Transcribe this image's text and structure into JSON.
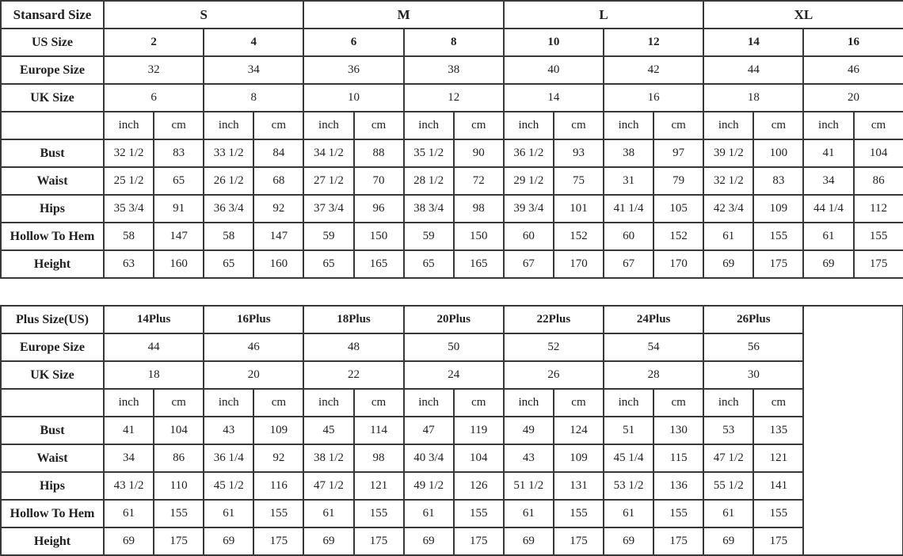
{
  "page": {
    "background_color": "#ffffff",
    "border_color": "#383838",
    "description": "Dress size chart with standard sizes and plus sizes"
  },
  "standard_table": {
    "name": "standard-size-chart",
    "label_column_header": "Stansard Size",
    "rows": [
      {
        "label": "Stansard Size",
        "style": "group",
        "cells": [
          {
            "t": "S",
            "s": 4
          },
          {
            "t": "M",
            "s": 4
          },
          {
            "t": "L",
            "s": 4
          },
          {
            "t": "XL",
            "s": 4
          }
        ]
      },
      {
        "label": "US Size",
        "style": "bold",
        "cells": [
          {
            "t": "2",
            "s": 2
          },
          {
            "t": "4",
            "s": 2
          },
          {
            "t": "6",
            "s": 2
          },
          {
            "t": "8",
            "s": 2
          },
          {
            "t": "10",
            "s": 2
          },
          {
            "t": "12",
            "s": 2
          },
          {
            "t": "14",
            "s": 2
          },
          {
            "t": "16",
            "s": 2
          }
        ]
      },
      {
        "label": "Europe Size",
        "cells": [
          {
            "t": "32",
            "s": 2
          },
          {
            "t": "34",
            "s": 2
          },
          {
            "t": "36",
            "s": 2
          },
          {
            "t": "38",
            "s": 2
          },
          {
            "t": "40",
            "s": 2
          },
          {
            "t": "42",
            "s": 2
          },
          {
            "t": "44",
            "s": 2
          },
          {
            "t": "46",
            "s": 2
          }
        ]
      },
      {
        "label": "UK Size",
        "cells": [
          {
            "t": "6",
            "s": 2
          },
          {
            "t": "8",
            "s": 2
          },
          {
            "t": "10",
            "s": 2
          },
          {
            "t": "12",
            "s": 2
          },
          {
            "t": "14",
            "s": 2
          },
          {
            "t": "16",
            "s": 2
          },
          {
            "t": "18",
            "s": 2
          },
          {
            "t": "20",
            "s": 2
          }
        ]
      },
      {
        "label": "",
        "cells": [
          "inch",
          "cm",
          "inch",
          "cm",
          "inch",
          "cm",
          "inch",
          "cm",
          "inch",
          "cm",
          "inch",
          "cm",
          "inch",
          "cm",
          "inch",
          "cm"
        ]
      },
      {
        "label": "Bust",
        "cells": [
          "32 1/2",
          "83",
          "33 1/2",
          "84",
          "34 1/2",
          "88",
          "35 1/2",
          "90",
          "36 1/2",
          "93",
          "38",
          "97",
          "39 1/2",
          "100",
          "41",
          "104"
        ]
      },
      {
        "label": "Waist",
        "cells": [
          "25 1/2",
          "65",
          "26 1/2",
          "68",
          "27 1/2",
          "70",
          "28 1/2",
          "72",
          "29 1/2",
          "75",
          "31",
          "79",
          "32 1/2",
          "83",
          "34",
          "86"
        ]
      },
      {
        "label": "Hips",
        "cells": [
          "35 3/4",
          "91",
          "36 3/4",
          "92",
          "37 3/4",
          "96",
          "38 3/4",
          "98",
          "39 3/4",
          "101",
          "41 1/4",
          "105",
          "42 3/4",
          "109",
          "44 1/4",
          "112"
        ]
      },
      {
        "label": "Hollow To Hem",
        "cells": [
          "58",
          "147",
          "58",
          "147",
          "59",
          "150",
          "59",
          "150",
          "60",
          "152",
          "60",
          "152",
          "61",
          "155",
          "61",
          "155"
        ]
      },
      {
        "label": "Height",
        "cells": [
          "63",
          "160",
          "65",
          "160",
          "65",
          "165",
          "65",
          "165",
          "67",
          "170",
          "67",
          "170",
          "69",
          "175",
          "69",
          "175"
        ]
      }
    ]
  },
  "plus_table": {
    "name": "plus-size-chart",
    "label_column_header": "Plus Size(US)",
    "trailing_empty_rowspan": 9,
    "rows": [
      {
        "label": "Plus Size(US)",
        "style": "bold",
        "cells": [
          {
            "t": "14Plus",
            "s": 2
          },
          {
            "t": "16Plus",
            "s": 2
          },
          {
            "t": "18Plus",
            "s": 2
          },
          {
            "t": "20Plus",
            "s": 2
          },
          {
            "t": "22Plus",
            "s": 2
          },
          {
            "t": "24Plus",
            "s": 2
          },
          {
            "t": "26Plus",
            "s": 2
          }
        ]
      },
      {
        "label": "Europe Size",
        "cells": [
          {
            "t": "44",
            "s": 2
          },
          {
            "t": "46",
            "s": 2
          },
          {
            "t": "48",
            "s": 2
          },
          {
            "t": "50",
            "s": 2
          },
          {
            "t": "52",
            "s": 2
          },
          {
            "t": "54",
            "s": 2
          },
          {
            "t": "56",
            "s": 2
          }
        ]
      },
      {
        "label": "UK Size",
        "cells": [
          {
            "t": "18",
            "s": 2
          },
          {
            "t": "20",
            "s": 2
          },
          {
            "t": "22",
            "s": 2
          },
          {
            "t": "24",
            "s": 2
          },
          {
            "t": "26",
            "s": 2
          },
          {
            "t": "28",
            "s": 2
          },
          {
            "t": "30",
            "s": 2
          }
        ]
      },
      {
        "label": "",
        "cells": [
          "inch",
          "cm",
          "inch",
          "cm",
          "inch",
          "cm",
          "inch",
          "cm",
          "inch",
          "cm",
          "inch",
          "cm",
          "inch",
          "cm"
        ]
      },
      {
        "label": "Bust",
        "cells": [
          "41",
          "104",
          "43",
          "109",
          "45",
          "114",
          "47",
          "119",
          "49",
          "124",
          "51",
          "130",
          "53",
          "135"
        ]
      },
      {
        "label": "Waist",
        "cells": [
          "34",
          "86",
          "36 1/4",
          "92",
          "38 1/2",
          "98",
          "40 3/4",
          "104",
          "43",
          "109",
          "45 1/4",
          "115",
          "47 1/2",
          "121"
        ]
      },
      {
        "label": "Hips",
        "cells": [
          "43 1/2",
          "110",
          "45 1/2",
          "116",
          "47 1/2",
          "121",
          "49 1/2",
          "126",
          "51 1/2",
          "131",
          "53 1/2",
          "136",
          "55 1/2",
          "141"
        ]
      },
      {
        "label": "Hollow To Hem",
        "cells": [
          "61",
          "155",
          "61",
          "155",
          "61",
          "155",
          "61",
          "155",
          "61",
          "155",
          "61",
          "155",
          "61",
          "155"
        ]
      },
      {
        "label": "Height",
        "cells": [
          "69",
          "175",
          "69",
          "175",
          "69",
          "175",
          "69",
          "175",
          "69",
          "175",
          "69",
          "175",
          "69",
          "175"
        ]
      }
    ]
  }
}
